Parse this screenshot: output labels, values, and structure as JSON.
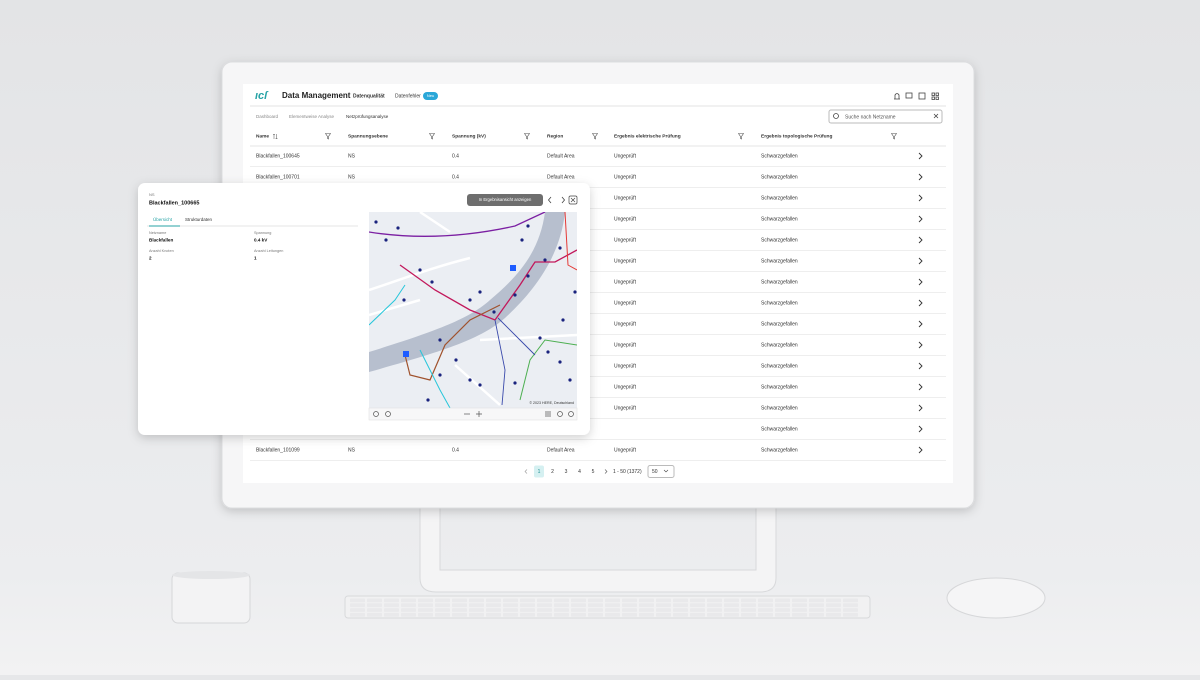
{
  "header": {
    "app_title": "Data Management",
    "nav": [
      "Datenqualität",
      "Datenfehler"
    ],
    "badge": "Neu"
  },
  "breadcrumbs": [
    "Dashboard",
    "Elementweise Analyse",
    "Netzprüfungsanalyse"
  ],
  "search_placeholder": "Suche nach Netzname",
  "table": {
    "columns": [
      "Name",
      "Spannungsebene",
      "Spannung (kV)",
      "Region",
      "Ergebnis elektrische Prüfung",
      "Ergebnis topologische Prüfung"
    ],
    "rows": [
      {
        "name": "Blackfallen_100645",
        "level": "NS",
        "voltage": 0.4,
        "region": "Default Area",
        "elec": "Ungeprüft",
        "topo": "Schwarzgefallen"
      },
      {
        "name": "Blackfallen_100701",
        "level": "NS",
        "voltage": 0.4,
        "region": "Default Area",
        "elec": "Ungeprüft",
        "topo": "Schwarzgefallen"
      },
      {
        "elec": "Ungeprüft",
        "topo": "Schwarzgefallen"
      },
      {
        "elec": "Ungeprüft",
        "topo": "Schwarzgefallen"
      },
      {
        "elec": "Ungeprüft",
        "topo": "Schwarzgefallen"
      },
      {
        "elec": "Ungeprüft",
        "topo": "Schwarzgefallen"
      },
      {
        "elec": "Ungeprüft",
        "topo": "Schwarzgefallen"
      },
      {
        "elec": "Ungeprüft",
        "topo": "Schwarzgefallen"
      },
      {
        "elec": "Ungeprüft",
        "topo": "Schwarzgefallen"
      },
      {
        "elec": "Ungeprüft",
        "topo": "Schwarzgefallen"
      },
      {
        "elec": "Ungeprüft",
        "topo": "Schwarzgefallen"
      },
      {
        "elec": "Ungeprüft",
        "topo": "Schwarzgefallen"
      },
      {
        "elec": "Ungeprüft",
        "topo": "Schwarzgefallen"
      },
      {
        "topo": "Schwarzgefallen"
      },
      {
        "name": "Blackfallen_101099",
        "level": "NS",
        "voltage": 0.4,
        "region": "Default Area",
        "elec": "Ungeprüft",
        "topo": "Schwarzgefallen"
      }
    ]
  },
  "pagination": {
    "pages": [
      1,
      2,
      3,
      4,
      5
    ],
    "range": "1 - 50 (1372)",
    "page_size": 50
  },
  "panel": {
    "level": "NS",
    "title": "Blackfallen_100665",
    "tabs": [
      "Übersicht",
      "Strukturdaten"
    ],
    "fields": [
      {
        "label": "Netzname",
        "value": "Blackfallen"
      },
      {
        "label": "Spannung",
        "value": "0.4 kV"
      },
      {
        "label": "Anzahl Knoten",
        "value": 2
      },
      {
        "label": "Anzahl Leitungen",
        "value": 1
      }
    ],
    "button": "In Ergebnisansicht anzeigen",
    "map_attribution": "© 2023 HERE, Deutschland"
  }
}
